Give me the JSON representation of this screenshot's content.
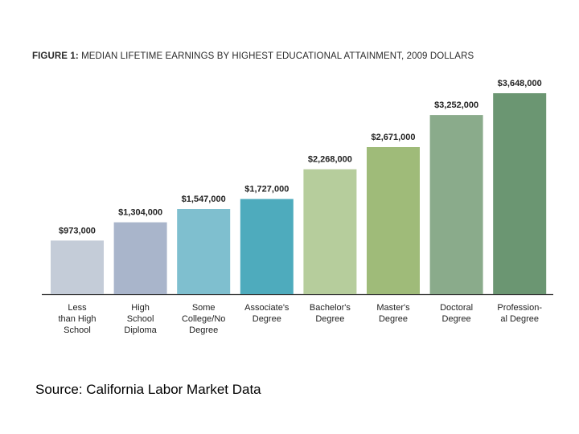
{
  "chart_data": {
    "type": "bar",
    "title_prefix": "FIGURE 1:",
    "title": "MEDIAN LIFETIME EARNINGS BY HIGHEST EDUCATIONAL ATTAINMENT, 2009 DOLLARS",
    "categories": [
      "Less than High School",
      "High School Diploma",
      "Some College/No Degree",
      "Associate's Degree",
      "Bachelor's Degree",
      "Master's Degree",
      "Doctoral Degree",
      "Profession-al Degree"
    ],
    "category_lines": [
      [
        "Less",
        "than High",
        "School"
      ],
      [
        "High",
        "School",
        "Diploma"
      ],
      [
        "Some",
        "College/No",
        "Degree"
      ],
      [
        "Associate's",
        "Degree"
      ],
      [
        "Bachelor's",
        "Degree"
      ],
      [
        "Master's",
        "Degree"
      ],
      [
        "Doctoral",
        "Degree"
      ],
      [
        "Profession-",
        "al Degree"
      ]
    ],
    "values": [
      973000,
      1304000,
      1547000,
      1727000,
      2268000,
      2671000,
      3252000,
      3648000
    ],
    "value_labels": [
      "$973,000",
      "$1,304,000",
      "$1,547,000",
      "$1,727,000",
      "$2,268,000",
      "$2,671,000",
      "$3,252,000",
      "$3,648,000"
    ],
    "colors": [
      "#c4ccd8",
      "#a9b5cb",
      "#7fbfcf",
      "#4eabbd",
      "#b6cd9c",
      "#9fbb79",
      "#8aab8b",
      "#6b9672"
    ],
    "ylim": [
      0,
      3648000
    ],
    "xlabel": "",
    "ylabel": ""
  },
  "source": "Source:  California Labor Market Data"
}
